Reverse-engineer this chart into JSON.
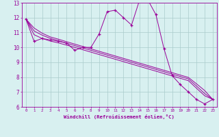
{
  "x": [
    0,
    1,
    2,
    3,
    4,
    5,
    6,
    7,
    8,
    9,
    10,
    11,
    12,
    13,
    14,
    15,
    16,
    17,
    18,
    19,
    20,
    21,
    22,
    23
  ],
  "y_main": [
    11.9,
    10.4,
    10.6,
    10.5,
    10.4,
    10.3,
    9.8,
    10.0,
    10.0,
    10.9,
    12.4,
    12.5,
    12.0,
    11.5,
    13.2,
    13.2,
    12.2,
    9.9,
    8.1,
    7.5,
    7.0,
    6.5,
    6.2,
    6.5
  ],
  "y_line1": [
    11.9,
    11.3,
    10.95,
    10.7,
    10.55,
    10.38,
    10.22,
    10.06,
    9.9,
    9.74,
    9.58,
    9.42,
    9.26,
    9.1,
    8.94,
    8.78,
    8.62,
    8.46,
    8.3,
    8.14,
    7.98,
    7.55,
    7.1,
    6.5
  ],
  "y_line2": [
    11.9,
    11.1,
    10.82,
    10.6,
    10.45,
    10.28,
    10.12,
    9.96,
    9.8,
    9.64,
    9.48,
    9.32,
    9.16,
    9.0,
    8.84,
    8.68,
    8.52,
    8.36,
    8.2,
    8.04,
    7.88,
    7.4,
    6.9,
    6.5
  ],
  "y_line3": [
    11.9,
    10.85,
    10.6,
    10.42,
    10.3,
    10.15,
    10.0,
    9.84,
    9.68,
    9.52,
    9.36,
    9.2,
    9.04,
    8.88,
    8.72,
    8.56,
    8.4,
    8.24,
    8.08,
    7.92,
    7.76,
    7.25,
    6.75,
    6.5
  ],
  "color": "#990099",
  "bg_color": "#d8f0f0",
  "grid_color": "#aacccc",
  "xlabel": "Windchill (Refroidissement éolien,°C)",
  "ylim": [
    6,
    13
  ],
  "xlim": [
    -0.5,
    23.5
  ],
  "yticks": [
    6,
    7,
    8,
    9,
    10,
    11,
    12,
    13
  ],
  "xticks": [
    0,
    1,
    2,
    3,
    4,
    5,
    6,
    7,
    8,
    9,
    10,
    11,
    12,
    13,
    14,
    15,
    16,
    17,
    18,
    19,
    20,
    21,
    22,
    23
  ],
  "xtick_labels": [
    "0",
    "1",
    "2",
    "3",
    "4",
    "5",
    "6",
    "7",
    "8",
    "9",
    "10",
    "11",
    "12",
    "13",
    "14",
    "15",
    "16",
    "17",
    "18",
    "19",
    "20",
    "21",
    "22",
    "23"
  ],
  "font_family": "monospace"
}
